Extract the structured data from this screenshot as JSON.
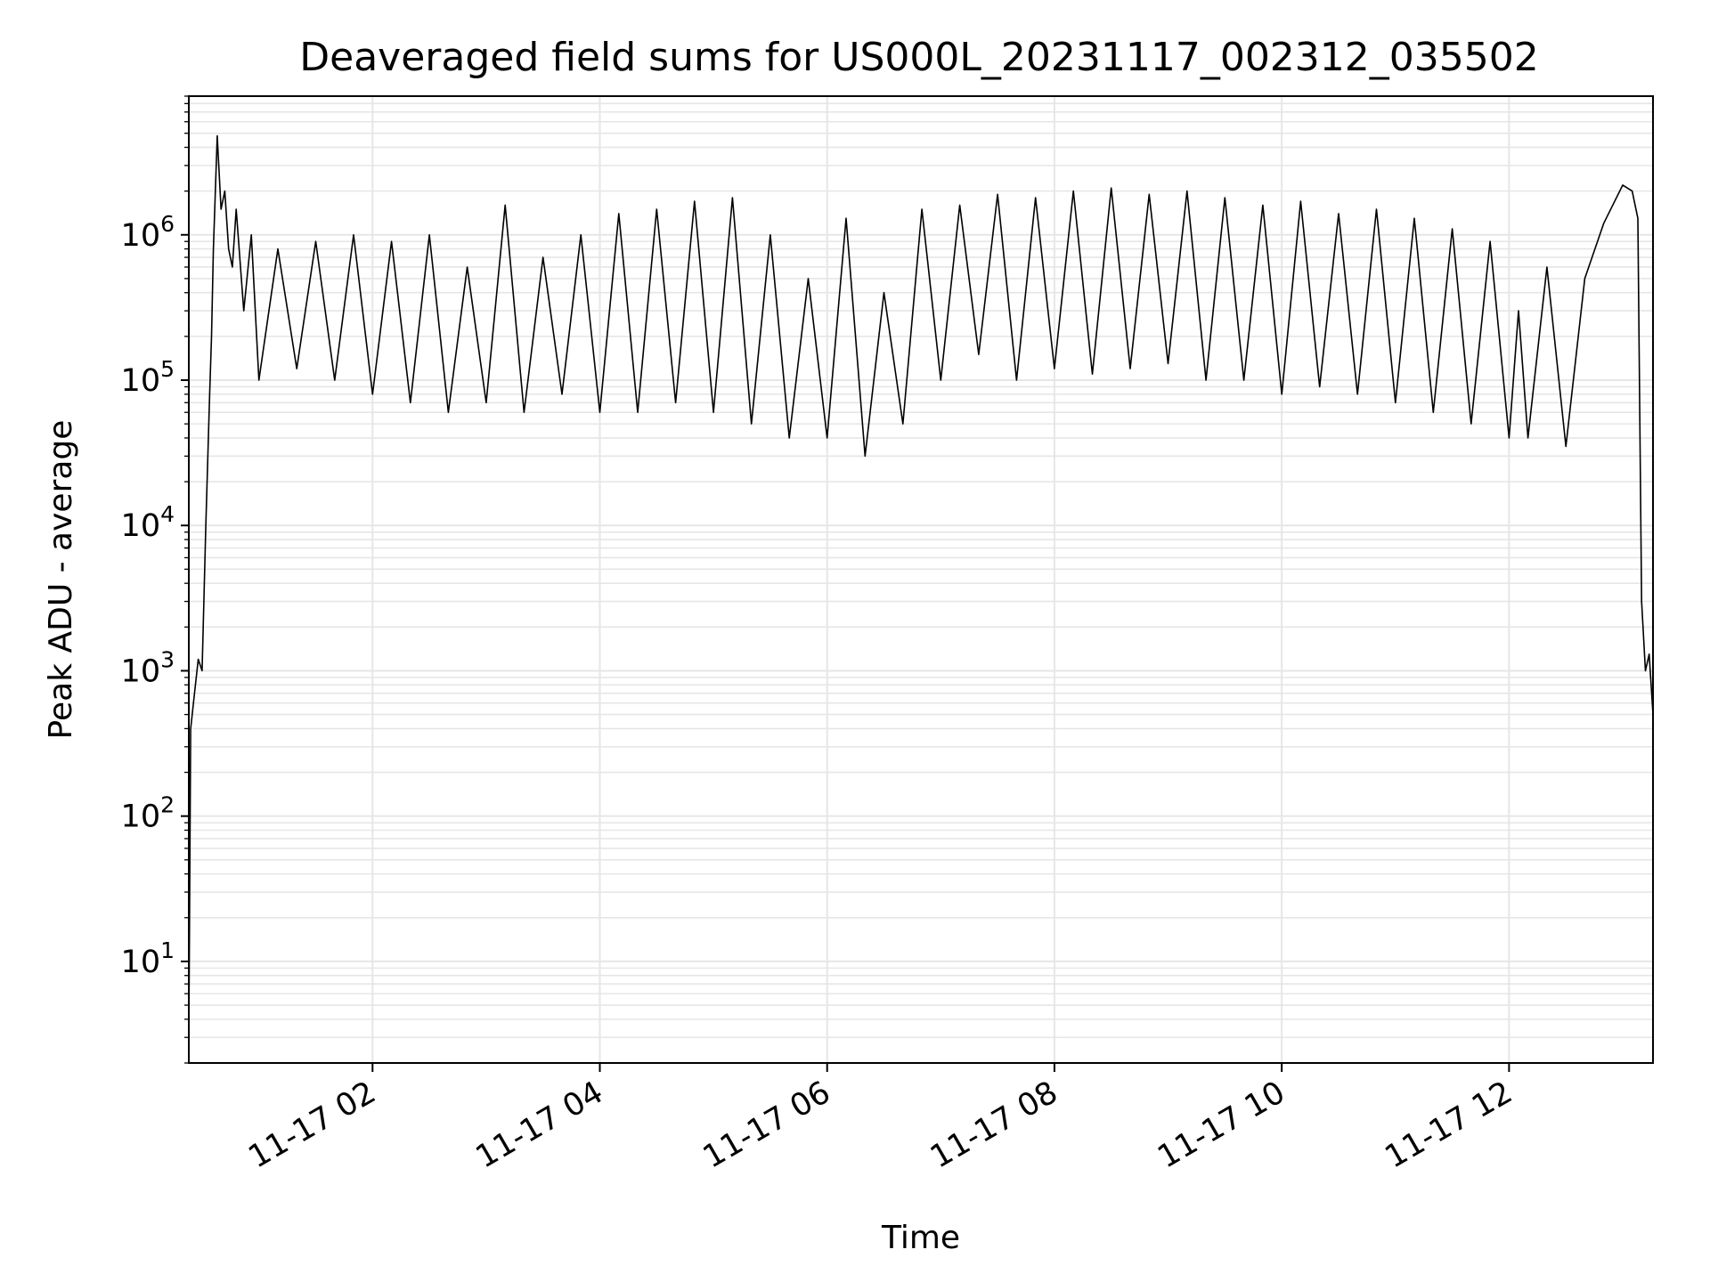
{
  "chart_data": {
    "type": "line",
    "title": "Deaveraged field sums for US000L_20231117_002312_035502",
    "xlabel": "Time",
    "ylabel": "Peak ADU - average",
    "yscale": "log",
    "xlim": [
      "2023-11-17 00:23",
      "2023-11-17 13:16"
    ],
    "ylim": [
      2,
      9000000
    ],
    "x_ticks": [
      {
        "value": "2023-11-17 02:00",
        "label": "11-17 02"
      },
      {
        "value": "2023-11-17 04:00",
        "label": "11-17 04"
      },
      {
        "value": "2023-11-17 06:00",
        "label": "11-17 06"
      },
      {
        "value": "2023-11-17 08:00",
        "label": "11-17 08"
      },
      {
        "value": "2023-11-17 10:00",
        "label": "11-17 10"
      },
      {
        "value": "2023-11-17 12:00",
        "label": "11-17 12"
      }
    ],
    "y_ticks": [
      {
        "value": 10,
        "base": "10",
        "exp": "1"
      },
      {
        "value": 100,
        "base": "10",
        "exp": "2"
      },
      {
        "value": 1000,
        "base": "10",
        "exp": "3"
      },
      {
        "value": 10000,
        "base": "10",
        "exp": "4"
      },
      {
        "value": 100000,
        "base": "10",
        "exp": "5"
      },
      {
        "value": 1000000,
        "base": "10",
        "exp": "6"
      }
    ],
    "grid": true,
    "line_color": "#000000",
    "grid_color": "#e6e6e6",
    "series": [
      {
        "x": [
          "2023-11-17 00:23",
          "2023-11-17 00:24",
          "2023-11-17 00:26",
          "2023-11-17 00:28",
          "2023-11-17 00:30",
          "2023-11-17 00:32",
          "2023-11-17 00:34",
          "2023-11-17 00:35",
          "2023-11-17 00:36",
          "2023-11-17 00:38",
          "2023-11-17 00:40",
          "2023-11-17 00:42",
          "2023-11-17 00:44",
          "2023-11-17 00:46",
          "2023-11-17 00:48",
          "2023-11-17 00:52",
          "2023-11-17 00:56",
          "2023-11-17 01:00",
          "2023-11-17 01:10",
          "2023-11-17 01:20",
          "2023-11-17 01:30",
          "2023-11-17 01:40",
          "2023-11-17 01:50",
          "2023-11-17 02:00",
          "2023-11-17 02:10",
          "2023-11-17 02:20",
          "2023-11-17 02:30",
          "2023-11-17 02:40",
          "2023-11-17 02:50",
          "2023-11-17 03:00",
          "2023-11-17 03:10",
          "2023-11-17 03:20",
          "2023-11-17 03:30",
          "2023-11-17 03:40",
          "2023-11-17 03:50",
          "2023-11-17 04:00",
          "2023-11-17 04:10",
          "2023-11-17 04:20",
          "2023-11-17 04:30",
          "2023-11-17 04:40",
          "2023-11-17 04:50",
          "2023-11-17 05:00",
          "2023-11-17 05:10",
          "2023-11-17 05:20",
          "2023-11-17 05:30",
          "2023-11-17 05:40",
          "2023-11-17 05:50",
          "2023-11-17 06:00",
          "2023-11-17 06:10",
          "2023-11-17 06:20",
          "2023-11-17 06:30",
          "2023-11-17 06:40",
          "2023-11-17 06:50",
          "2023-11-17 07:00",
          "2023-11-17 07:10",
          "2023-11-17 07:20",
          "2023-11-17 07:30",
          "2023-11-17 07:40",
          "2023-11-17 07:50",
          "2023-11-17 08:00",
          "2023-11-17 08:10",
          "2023-11-17 08:20",
          "2023-11-17 08:30",
          "2023-11-17 08:40",
          "2023-11-17 08:50",
          "2023-11-17 09:00",
          "2023-11-17 09:10",
          "2023-11-17 09:20",
          "2023-11-17 09:30",
          "2023-11-17 09:40",
          "2023-11-17 09:50",
          "2023-11-17 10:00",
          "2023-11-17 10:10",
          "2023-11-17 10:20",
          "2023-11-17 10:30",
          "2023-11-17 10:40",
          "2023-11-17 10:50",
          "2023-11-17 11:00",
          "2023-11-17 11:10",
          "2023-11-17 11:20",
          "2023-11-17 11:30",
          "2023-11-17 11:40",
          "2023-11-17 11:50",
          "2023-11-17 12:00",
          "2023-11-17 12:05",
          "2023-11-17 12:10",
          "2023-11-17 12:20",
          "2023-11-17 12:30",
          "2023-11-17 12:40",
          "2023-11-17 12:50",
          "2023-11-17 13:00",
          "2023-11-17 13:05",
          "2023-11-17 13:08",
          "2023-11-17 13:10",
          "2023-11-17 13:12",
          "2023-11-17 13:14",
          "2023-11-17 13:16"
        ],
        "y": [
          3,
          400,
          700,
          1200,
          1000,
          10000,
          80000,
          200000,
          800000,
          4800000,
          1500000,
          2000000,
          800000,
          600000,
          1500000,
          300000,
          1000000,
          100000,
          800000,
          120000,
          900000,
          100000,
          1000000,
          80000,
          900000,
          70000,
          1000000,
          60000,
          600000,
          70000,
          1600000,
          60000,
          700000,
          80000,
          1000000,
          60000,
          1400000,
          60000,
          1500000,
          70000,
          1700000,
          60000,
          1800000,
          50000,
          1000000,
          40000,
          500000,
          40000,
          1300000,
          30000,
          400000,
          50000,
          1500000,
          100000,
          1600000,
          150000,
          1900000,
          100000,
          1800000,
          120000,
          2000000,
          110000,
          2100000,
          120000,
          1900000,
          130000,
          2000000,
          100000,
          1800000,
          100000,
          1600000,
          80000,
          1700000,
          90000,
          1400000,
          80000,
          1500000,
          70000,
          1300000,
          60000,
          1100000,
          50000,
          900000,
          40000,
          300000,
          40000,
          600000,
          35000,
          500000,
          1200000,
          2200000,
          2000000,
          1300000,
          3000,
          1000,
          1300,
          500
        ]
      }
    ]
  }
}
